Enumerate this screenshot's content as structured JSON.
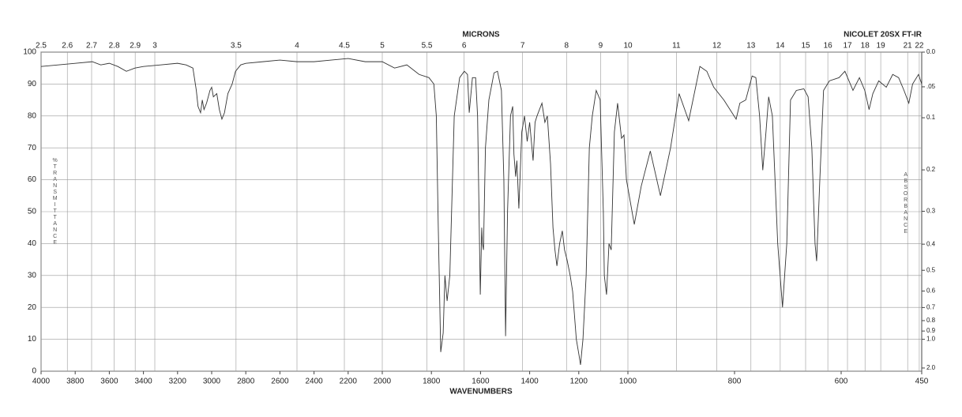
{
  "chart_data": {
    "type": "line",
    "title": "NICOLET 20SX FT-IR",
    "x_label": "WAVENUMBERS",
    "x2_label": "MICRONS",
    "y_label": "%TRANSMITTANCE",
    "y2_label": "ABSORBANCE",
    "y2_scale": "absorbance",
    "xlim": [
      4000,
      450
    ],
    "xticks": [
      4000,
      3800,
      3600,
      3400,
      3200,
      3000,
      2800,
      2600,
      2400,
      2200,
      2000,
      1800,
      1600,
      1400,
      1200,
      1000,
      800,
      600,
      450
    ],
    "x2ticks": [
      2.5,
      2.6,
      2.7,
      2.8,
      2.9,
      3,
      3.5,
      4,
      4.5,
      5,
      5.5,
      6,
      7,
      8,
      9,
      10,
      11,
      12,
      13,
      14,
      15,
      16,
      17,
      18,
      19,
      21,
      22
    ],
    "ylim": [
      0,
      100
    ],
    "yticks": [
      0,
      10,
      20,
      30,
      40,
      50,
      60,
      70,
      80,
      90,
      100
    ],
    "y2ticks": [
      {
        "value": 0,
        "label": "0.0"
      },
      {
        "value": 0.05,
        "label": ".05"
      },
      0.1,
      0.2,
      0.3,
      0.4,
      0.5,
      0.6,
      0.7,
      0.8,
      0.9,
      {
        "value": 1,
        "label": "1.0"
      },
      {
        "value": 2,
        "label": "2.0"
      }
    ],
    "grid": true,
    "series": [
      {
        "name": "spectrum",
        "color": "#333333",
        "x": [
          4000,
          3900,
          3800,
          3700,
          3650,
          3600,
          3550,
          3500,
          3450,
          3400,
          3300,
          3200,
          3150,
          3110,
          3090,
          3080,
          3065,
          3055,
          3045,
          3030,
          3010,
          3000,
          2990,
          2970,
          2955,
          2940,
          2925,
          2905,
          2880,
          2860,
          2830,
          2800,
          2700,
          2600,
          2500,
          2400,
          2300,
          2200,
          2100,
          2000,
          1950,
          1900,
          1850,
          1810,
          1790,
          1780,
          1772,
          1762,
          1752,
          1745,
          1736,
          1725,
          1707,
          1685,
          1666,
          1653,
          1646,
          1633,
          1620,
          1612,
          1601,
          1595,
          1592,
          1588,
          1580,
          1566,
          1545,
          1531,
          1515,
          1505,
          1498,
          1490,
          1478,
          1469,
          1464,
          1457,
          1452,
          1444,
          1432,
          1421,
          1410,
          1400,
          1386,
          1378,
          1370,
          1350,
          1338,
          1328,
          1315,
          1305,
          1297,
          1289,
          1278,
          1267,
          1258,
          1248,
          1235,
          1225,
          1210,
          1199,
          1193,
          1183,
          1170,
          1157,
          1145,
          1129,
          1113,
          1100,
          1096,
          1087,
          1077,
          1068,
          1055,
          1042,
          1026,
          1016,
          1006,
          988,
          975,
          958,
          939,
          920,
          904,
          886,
          865,
          852,
          839,
          820,
          797,
          790,
          779,
          767,
          760,
          753,
          747,
          741,
          736,
          729,
          719,
          710,
          702,
          695,
          684,
          670,
          662,
          655,
          649,
          646,
          640,
          633,
          622,
          604,
          593,
          578,
          566,
          556,
          548,
          541,
          530,
          516,
          504,
          493,
          483,
          474,
          467,
          456,
          450
        ],
        "values": [
          95.5,
          96,
          96.5,
          97,
          96,
          96.5,
          95.5,
          94,
          95,
          95.5,
          96,
          96.5,
          96,
          95,
          88,
          83,
          81,
          85,
          82,
          84,
          88,
          89,
          86,
          87,
          82,
          79,
          81,
          87,
          90,
          94,
          96,
          96.5,
          97,
          97.5,
          97,
          97,
          97.5,
          98,
          97,
          97,
          95,
          96,
          93,
          92,
          90,
          80,
          45,
          6,
          12,
          30,
          22,
          30,
          80,
          92,
          94,
          93,
          81,
          92,
          92,
          80,
          24,
          45,
          40,
          38,
          70,
          85,
          93.5,
          94,
          88,
          60,
          11,
          50,
          80,
          83,
          68,
          61,
          66,
          51,
          75,
          80,
          72,
          78,
          66,
          78,
          80,
          84,
          78,
          80,
          65,
          45,
          38,
          33,
          40,
          44,
          38,
          35,
          30,
          25,
          10,
          5,
          2,
          10,
          30,
          70,
          80,
          88,
          85,
          50,
          30,
          24,
          40,
          38,
          75,
          84,
          73,
          74,
          60,
          46,
          58,
          69,
          55,
          70,
          87,
          78.5,
          95.5,
          94,
          89,
          85,
          79,
          84,
          85,
          92.5,
          92,
          80,
          63,
          75,
          86,
          80,
          40,
          20,
          40,
          85,
          88,
          88.5,
          86,
          70,
          40,
          34.5,
          60,
          88,
          91,
          92,
          94,
          88,
          92,
          88,
          82,
          87,
          91,
          89,
          93,
          92,
          88,
          84,
          90,
          93,
          90
        ]
      }
    ]
  }
}
